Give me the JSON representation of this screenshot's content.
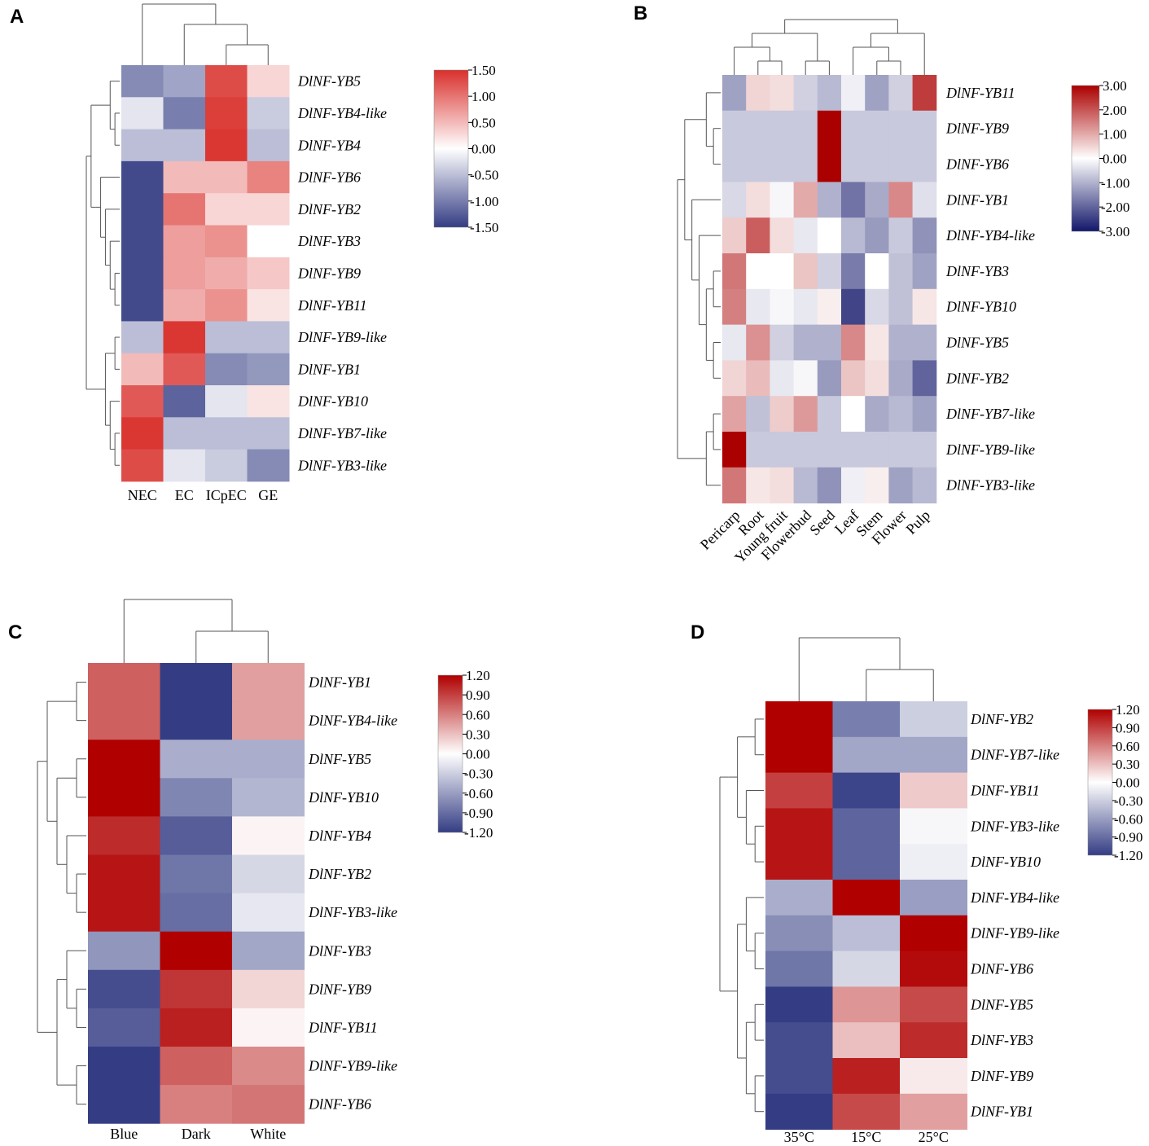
{
  "chart_data": [
    {
      "panel": "A",
      "type": "heatmap",
      "columns": [
        "NEC",
        "EC",
        "ICpEC",
        "GE"
      ],
      "rows": [
        "DlNF-YB5",
        "DlNF-YB4-like",
        "DlNF-YB4",
        "DlNF-YB6",
        "DlNF-YB2",
        "DlNF-YB3",
        "DlNF-YB9",
        "DlNF-YB11",
        "DlNF-YB9-like",
        "DlNF-YB1",
        "DlNF-YB10",
        "DlNF-YB7-like",
        "DlNF-YB3-like"
      ],
      "values": [
        [
          -0.9,
          -0.7,
          1.3,
          0.3
        ],
        [
          -0.2,
          -1.0,
          1.4,
          -0.4
        ],
        [
          -0.5,
          -0.5,
          1.45,
          -0.5
        ],
        [
          -1.4,
          0.5,
          0.5,
          0.9
        ],
        [
          -1.4,
          1.0,
          0.3,
          0.3
        ],
        [
          -1.4,
          0.7,
          0.8,
          0.0
        ],
        [
          -1.4,
          0.7,
          0.6,
          0.4
        ],
        [
          -1.4,
          0.6,
          0.8,
          0.2
        ],
        [
          -0.5,
          1.45,
          -0.5,
          -0.5
        ],
        [
          0.5,
          1.2,
          -0.9,
          -0.8
        ],
        [
          1.2,
          -1.2,
          -0.2,
          0.2
        ],
        [
          1.45,
          -0.5,
          -0.5,
          -0.5
        ],
        [
          1.3,
          -0.2,
          -0.4,
          -0.9
        ]
      ],
      "scale": {
        "min": -1.5,
        "max": 1.5,
        "ticks": [
          "1.50",
          "1.00",
          "0.50",
          "0.00",
          "-0.50",
          "-1.00",
          "-1.50"
        ]
      },
      "low_color": "#343d84",
      "mid_color": "#ffffff",
      "high_color": "#d9302c"
    },
    {
      "panel": "B",
      "type": "heatmap",
      "columns": [
        "Pericarp",
        "Root",
        "Young fruit",
        "Flowerbud",
        "Seed",
        "Leaf",
        "Stem",
        "Flower",
        "Pulp"
      ],
      "rows": [
        "DlNF-YB11",
        "DlNF-YB9",
        "DlNF-YB6",
        "DlNF-YB1",
        "DlNF-YB4-like",
        "DlNF-YB3",
        "DlNF-YB10",
        "DlNF-YB5",
        "DlNF-YB2",
        "DlNF-YB7-like",
        "DlNF-YB9-like",
        "DlNF-YB3-like"
      ],
      "values": [
        [
          -1.2,
          0.5,
          0.4,
          -0.6,
          -0.9,
          -0.2,
          -1.2,
          -0.6,
          2.3
        ],
        [
          -0.7,
          -0.7,
          -0.7,
          -0.7,
          3.0,
          -0.7,
          -0.7,
          -0.7,
          -0.7
        ],
        [
          -0.7,
          -0.7,
          -0.7,
          -0.7,
          3.0,
          -0.7,
          -0.7,
          -0.7,
          -0.7
        ],
        [
          -0.5,
          0.4,
          -0.1,
          1.0,
          -1.0,
          -1.8,
          -1.1,
          1.4,
          -0.4
        ],
        [
          0.6,
          1.9,
          0.4,
          -0.3,
          0.0,
          -0.9,
          -1.3,
          -0.7,
          -1.4
        ],
        [
          1.6,
          0.0,
          0.0,
          0.7,
          -0.6,
          -1.7,
          0.0,
          -0.8,
          -1.2
        ],
        [
          1.5,
          -0.3,
          -0.1,
          -0.3,
          0.2,
          -2.4,
          -0.5,
          -0.8,
          0.3
        ],
        [
          -0.3,
          1.3,
          -0.6,
          -1.0,
          -1.0,
          1.4,
          0.3,
          -1.0,
          -1.0
        ],
        [
          0.5,
          0.8,
          -0.3,
          -0.1,
          -1.3,
          0.7,
          0.4,
          -1.1,
          -2.0
        ],
        [
          1.1,
          -0.8,
          0.6,
          1.2,
          -0.7,
          0.0,
          -1.1,
          -0.9,
          -1.2
        ],
        [
          3.0,
          -0.7,
          -0.7,
          -0.7,
          -0.7,
          -0.7,
          -0.7,
          -0.7,
          -0.7
        ],
        [
          1.6,
          0.3,
          0.4,
          -0.9,
          -1.4,
          -0.2,
          0.2,
          -1.2,
          -0.9
        ]
      ],
      "scale": {
        "min": -3.0,
        "max": 3.0,
        "ticks": [
          "3.00",
          "2.00",
          "1.00",
          "0.00",
          "-1.00",
          "-2.00",
          "-3.00"
        ]
      },
      "low_color": "#12166a",
      "mid_color": "#ffffff",
      "high_color": "#ab0000"
    },
    {
      "panel": "C",
      "type": "heatmap",
      "columns": [
        "Blue",
        "Dark",
        "White"
      ],
      "rows": [
        "DlNF-YB1",
        "DlNF-YB4-like",
        "DlNF-YB5",
        "DlNF-YB10",
        "DlNF-YB4",
        "DlNF-YB2",
        "DlNF-YB3-like",
        "DlNF-YB3",
        "DlNF-YB9",
        "DlNF-YB11",
        "DlNF-YB9-like",
        "DlNF-YB6"
      ],
      "values": [
        [
          0.75,
          -1.2,
          0.45
        ],
        [
          0.75,
          -1.2,
          0.45
        ],
        [
          1.2,
          -0.5,
          -0.5
        ],
        [
          1.2,
          -0.75,
          -0.45
        ],
        [
          1.0,
          -1.0,
          0.05
        ],
        [
          1.1,
          -0.85,
          -0.25
        ],
        [
          1.1,
          -0.9,
          -0.15
        ],
        [
          -0.65,
          1.2,
          -0.55
        ],
        [
          -1.1,
          0.95,
          0.2
        ],
        [
          -1.0,
          1.05,
          0.05
        ],
        [
          -1.2,
          0.75,
          0.55
        ],
        [
          -1.2,
          0.6,
          0.65
        ]
      ],
      "scale": {
        "min": -1.2,
        "max": 1.2,
        "ticks": [
          "1.20",
          "0.90",
          "0.60",
          "0.30",
          "0.00",
          "-0.30",
          "-0.60",
          "-0.90",
          "-1.20"
        ]
      },
      "low_color": "#343d84",
      "mid_color": "#ffffff",
      "high_color": "#b00000"
    },
    {
      "panel": "D",
      "type": "heatmap",
      "columns": [
        "35°C",
        "15°C",
        "25°C"
      ],
      "rows": [
        "DlNF-YB2",
        "DlNF-YB7-like",
        "DlNF-YB11",
        "DlNF-YB3-like",
        "DlNF-YB10",
        "DlNF-YB4-like",
        "DlNF-YB9-like",
        "DlNF-YB6",
        "DlNF-YB5",
        "DlNF-YB3",
        "DlNF-YB9",
        "DlNF-YB1"
      ],
      "values": [
        [
          1.2,
          -0.8,
          -0.3
        ],
        [
          1.2,
          -0.55,
          -0.55
        ],
        [
          0.9,
          -1.15,
          0.25
        ],
        [
          1.1,
          -0.95,
          -0.05
        ],
        [
          1.1,
          -0.95,
          -0.1
        ],
        [
          -0.5,
          1.2,
          -0.6
        ],
        [
          -0.7,
          -0.4,
          1.2
        ],
        [
          -0.85,
          -0.25,
          1.15
        ],
        [
          -1.2,
          0.5,
          0.85
        ],
        [
          -1.1,
          0.3,
          1.0
        ],
        [
          -1.1,
          1.05,
          0.1
        ],
        [
          -1.2,
          0.85,
          0.45
        ]
      ],
      "scale": {
        "min": -1.2,
        "max": 1.2,
        "ticks": [
          "1.20",
          "0.90",
          "0.60",
          "0.30",
          "0.00",
          "-0.30",
          "-0.60",
          "-0.90",
          "-1.20"
        ]
      },
      "low_color": "#343d84",
      "mid_color": "#ffffff",
      "high_color": "#b00000"
    }
  ]
}
